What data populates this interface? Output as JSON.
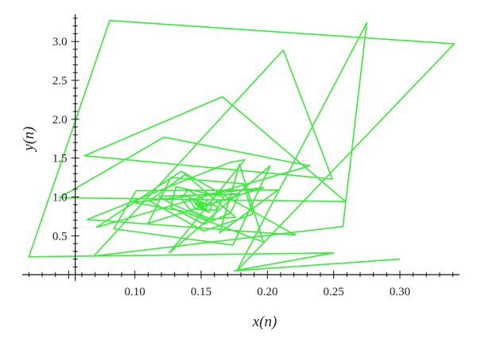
{
  "chart_data": {
    "type": "line",
    "title": "",
    "xlabel": "x(n)",
    "ylabel": "y(n)",
    "xlim": [
      0.015,
      0.345
    ],
    "ylim": [
      -0.05,
      3.35
    ],
    "axis_origin": {
      "x": 0.055,
      "y": 0.0
    },
    "xticks": [
      0.1,
      0.15,
      0.2,
      0.25,
      0.3
    ],
    "xtick_labels": [
      "0.10",
      "0.15",
      "0.20",
      "0.25",
      "0.30"
    ],
    "yticks": [
      0.5,
      1.0,
      1.5,
      2.0,
      2.5,
      3.0
    ],
    "ytick_labels": [
      "0.5",
      "1.0",
      "1.5",
      "2.0",
      "2.5",
      "3.0"
    ],
    "grid": false,
    "series": [
      {
        "color": "#33ee33",
        "x": [
          0.3,
          0.175,
          0.25,
          0.02,
          0.081,
          0.341,
          0.177,
          0.275,
          0.257,
          0.069,
          0.212,
          0.249,
          0.062,
          0.166,
          0.259,
          0.043,
          0.122,
          0.232,
          0.071,
          0.135,
          0.221,
          0.064,
          0.171,
          0.183,
          0.126,
          0.202,
          0.174,
          0.084,
          0.101,
          0.208,
          0.164,
          0.179,
          0.197,
          0.135,
          0.099,
          0.197,
          0.11,
          0.127,
          0.182,
          0.189,
          0.152,
          0.111,
          0.138,
          0.176,
          0.155,
          0.128,
          0.118,
          0.179,
          0.172,
          0.152,
          0.127,
          0.131,
          0.167,
          0.158,
          0.142,
          0.135,
          0.14,
          0.163,
          0.16,
          0.146,
          0.141,
          0.141,
          0.158,
          0.156,
          0.148,
          0.144,
          0.145,
          0.155,
          0.153,
          0.149,
          0.146,
          0.147,
          0.152,
          0.152,
          0.15,
          0.148,
          0.148,
          0.151,
          0.151,
          0.15,
          0.149,
          0.149
        ],
        "y": [
          0.2,
          0.05,
          0.28,
          0.23,
          3.27,
          2.97,
          0.05,
          3.24,
          0.62,
          0.24,
          2.89,
          1.23,
          1.53,
          2.29,
          0.94,
          0.99,
          1.77,
          1.4,
          0.61,
          1.33,
          0.51,
          0.71,
          1.44,
          1.48,
          0.28,
          1.4,
          0.38,
          0.59,
          1.08,
          1.09,
          0.54,
          1.42,
          0.42,
          0.82,
          0.93,
          1.12,
          0.66,
          1.25,
          1.17,
          0.78,
          0.56,
          0.95,
          1.29,
          0.74,
          0.71,
          0.91,
          1.01,
          1.04,
          0.79,
          0.65,
          0.87,
          1.13,
          1.0,
          0.71,
          0.83,
          0.98,
          1.09,
          0.86,
          0.83,
          0.84,
          0.97,
          0.99,
          0.89,
          0.8,
          0.87,
          0.95,
          0.97,
          0.89,
          0.84,
          0.88,
          0.93,
          0.95,
          0.89,
          0.86,
          0.88,
          0.92,
          0.93,
          0.9,
          0.87,
          0.89,
          0.91,
          0.91
        ]
      }
    ]
  }
}
